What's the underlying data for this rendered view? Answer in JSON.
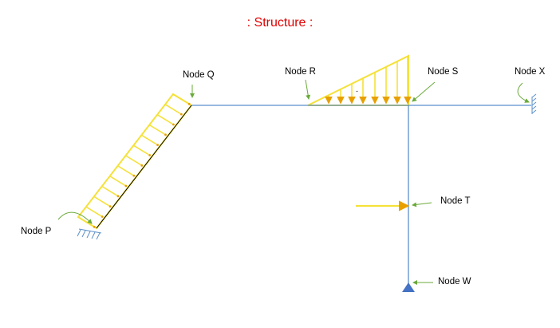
{
  "title": ": Structure :",
  "colors": {
    "title": "#e00000",
    "member": "#5b8fc9",
    "load": "#f5e13a",
    "load_arrow": "#e8a000",
    "pointer": "#6aaa3a",
    "support": "#4472c4"
  },
  "nodes": {
    "p": "Node P",
    "q": "Node Q",
    "r": "Node R",
    "s": "Node S",
    "x": "Node X",
    "t": "Node T",
    "w": "Node W"
  },
  "supports": {
    "p": "fixed",
    "x": "fixed",
    "w": "pinned"
  },
  "loads": [
    {
      "type": "uniformly-distributed",
      "member": "P-Q"
    },
    {
      "type": "triangular",
      "from": "Node R",
      "to": "Node S"
    },
    {
      "type": "point",
      "at": "Node T"
    }
  ],
  "annotations": {
    "dot_mark": "-"
  }
}
